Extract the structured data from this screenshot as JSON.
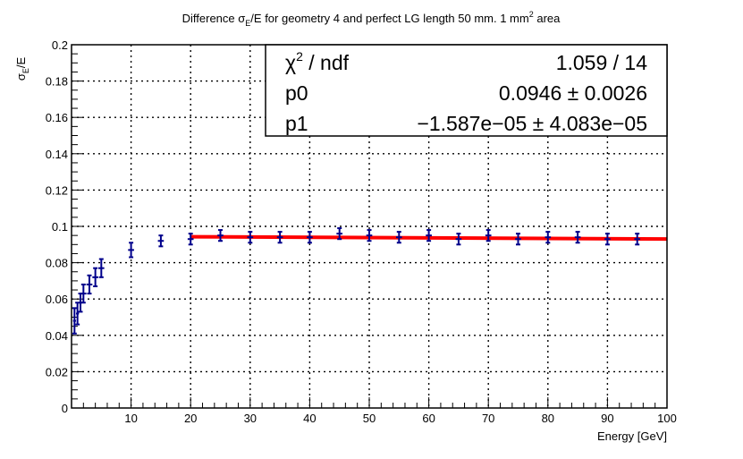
{
  "chart_data": {
    "type": "scatter",
    "title_main": "Difference σ",
    "title_sub": "E",
    "title_mid": "/E for geometry 4 and perfect LG length 50 mm. 1 mm",
    "title_sup": "2",
    "title_end": " area",
    "ylabel_main": "σ",
    "ylabel_sub": "E",
    "ylabel_end": "/E",
    "xlabel": "Energy [GeV]",
    "xlim": [
      0,
      100
    ],
    "ylim": [
      0,
      0.2
    ],
    "x_ticks": [
      10,
      20,
      30,
      40,
      50,
      60,
      70,
      80,
      90,
      100
    ],
    "y_ticks": [
      0,
      0.02,
      0.04,
      0.06,
      0.08,
      0.1,
      0.12,
      0.14,
      0.16,
      0.18,
      0.2
    ],
    "grid": true,
    "series": [
      {
        "x": [
          0.5,
          1,
          1.5,
          2,
          3,
          4,
          5,
          10,
          15,
          20,
          25,
          30,
          35,
          40,
          45,
          50,
          55,
          60,
          65,
          70,
          75,
          80,
          85,
          90,
          95
        ],
        "y": [
          0.048,
          0.052,
          0.058,
          0.063,
          0.068,
          0.072,
          0.077,
          0.087,
          0.092,
          0.093,
          0.095,
          0.094,
          0.094,
          0.094,
          0.096,
          0.095,
          0.094,
          0.095,
          0.093,
          0.095,
          0.093,
          0.094,
          0.094,
          0.093,
          0.093
        ],
        "yerr": [
          0.007,
          0.006,
          0.005,
          0.005,
          0.005,
          0.005,
          0.005,
          0.004,
          0.003,
          0.003,
          0.003,
          0.003,
          0.003,
          0.003,
          0.003,
          0.003,
          0.003,
          0.003,
          0.003,
          0.003,
          0.003,
          0.003,
          0.003,
          0.003,
          0.003
        ],
        "xerr": [
          0.25,
          0.25,
          0.25,
          0.5,
          0.5,
          0.5,
          0.5,
          0.5,
          0.5,
          0.5,
          0.5,
          0.5,
          0.5,
          0.5,
          0.5,
          0.5,
          0.5,
          0.5,
          0.5,
          0.5,
          0.5,
          0.5,
          0.5,
          0.5,
          0.5
        ],
        "color": "#00008b"
      }
    ],
    "fit": {
      "x_range": [
        20,
        100
      ],
      "p0": 0.0946,
      "p1": -1.587e-05,
      "color": "#ff0000"
    },
    "stats_box": {
      "position": "top-right",
      "rows": [
        {
          "label_main": "χ",
          "label_sup": "2",
          "label_end": " / ndf",
          "value": "1.059 / 14"
        },
        {
          "label_main": "p0",
          "label_sup": "",
          "label_end": "",
          "value": "0.0946 ± 0.0026"
        },
        {
          "label_main": "p1",
          "label_sup": "",
          "label_end": "",
          "value": "−1.587e−05 ± 4.083e−05"
        }
      ]
    }
  }
}
